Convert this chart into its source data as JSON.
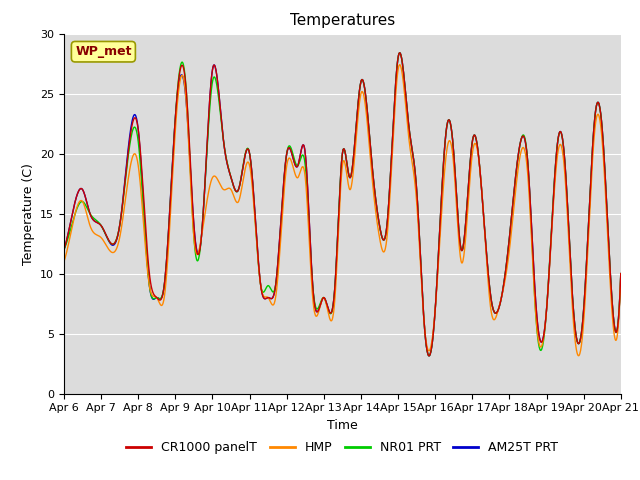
{
  "title": "Temperatures",
  "xlabel": "Time",
  "ylabel": "Temperature (C)",
  "ylim": [
    0,
    30
  ],
  "xtick_labels": [
    "Apr 6",
    "Apr 7",
    "Apr 8",
    "Apr 9",
    "Apr 10",
    "Apr 11",
    "Apr 12",
    "Apr 13",
    "Apr 14",
    "Apr 15",
    "Apr 16",
    "Apr 17",
    "Apr 18",
    "Apr 19",
    "Apr 20",
    "Apr 21"
  ],
  "series_colors": [
    "#cc0000",
    "#ff8800",
    "#00cc00",
    "#0000cc"
  ],
  "series_names": [
    "CR1000 panelT",
    "HMP",
    "NR01 PRT",
    "AM25T PRT"
  ],
  "background_color": "#dcdcdc",
  "annotation_text": "WP_met",
  "annotation_color": "#880000",
  "annotation_bg": "#ffff99",
  "annotation_border": "#999900",
  "title_fontsize": 11,
  "axis_fontsize": 9,
  "tick_fontsize": 8,
  "legend_fontsize": 9,
  "line_width": 1.0,
  "key_times": [
    0,
    0.3,
    0.5,
    0.7,
    1.0,
    1.5,
    2.0,
    2.3,
    2.5,
    2.7,
    3.0,
    3.3,
    3.5,
    3.7,
    4.0,
    4.3,
    4.5,
    4.7,
    5.0,
    5.3,
    5.5,
    5.7,
    6.0,
    6.3,
    6.5,
    6.7,
    7.0,
    7.3,
    7.5,
    7.7,
    8.0,
    8.3,
    8.5,
    8.7,
    9.0,
    9.3,
    9.5,
    9.7,
    10.0,
    10.3,
    10.5,
    10.7,
    11.0,
    11.3,
    11.5,
    11.7,
    12.0,
    12.3,
    12.5,
    12.7,
    13.0,
    13.3,
    13.5,
    13.7,
    14.0,
    14.3,
    14.5,
    14.7,
    15.0
  ],
  "key_vals_cr": [
    12,
    16,
    17,
    15,
    14,
    14,
    22,
    10,
    8,
    9,
    23,
    25,
    14,
    13,
    27,
    21,
    18,
    17,
    20,
    9,
    8,
    9,
    20,
    19,
    20,
    9,
    8,
    9,
    20,
    18,
    26,
    19,
    14,
    14,
    28,
    22,
    17,
    6,
    7,
    22,
    20,
    12,
    21,
    15,
    8,
    7,
    13,
    21,
    19,
    8,
    7,
    21,
    19,
    8,
    7,
    23,
    22,
    11,
    10
  ],
  "key_vals_hmp": [
    11,
    15,
    16,
    14,
    13,
    13,
    19,
    9,
    8,
    8,
    22,
    24,
    13,
    13,
    18,
    17,
    17,
    16,
    19,
    9,
    8,
    8,
    19,
    18,
    18,
    8,
    8,
    8,
    19,
    17,
    25,
    18,
    13,
    13,
    27,
    21,
    16,
    6,
    7,
    20,
    19,
    11,
    20,
    15,
    7,
    7,
    12,
    20,
    18,
    7,
    7,
    20,
    18,
    7,
    6,
    22,
    21,
    10,
    10
  ],
  "key_vals_nr": [
    12,
    15,
    16,
    15,
    14,
    14,
    21,
    9,
    8,
    9,
    23,
    25,
    13,
    13,
    26,
    21,
    18,
    17,
    20,
    9,
    9,
    9,
    20,
    19,
    19,
    9,
    8,
    9,
    20,
    18,
    26,
    19,
    14,
    14,
    28,
    22,
    17,
    6,
    7,
    22,
    20,
    12,
    21,
    15,
    8,
    7,
    13,
    21,
    19,
    7,
    7,
    21,
    19,
    8,
    7,
    23,
    22,
    11,
    10
  ],
  "key_vals_am": [
    12,
    16,
    17,
    15,
    14,
    14,
    22,
    9,
    8,
    9,
    23,
    24,
    14,
    13,
    27,
    21,
    18,
    17,
    20,
    9,
    8,
    9,
    20,
    19,
    20,
    9,
    8,
    9,
    20,
    18,
    26,
    19,
    14,
    14,
    28,
    22,
    17,
    6,
    7,
    22,
    20,
    12,
    21,
    15,
    8,
    7,
    13,
    21,
    19,
    8,
    7,
    21,
    19,
    8,
    7,
    23,
    22,
    11,
    10
  ]
}
